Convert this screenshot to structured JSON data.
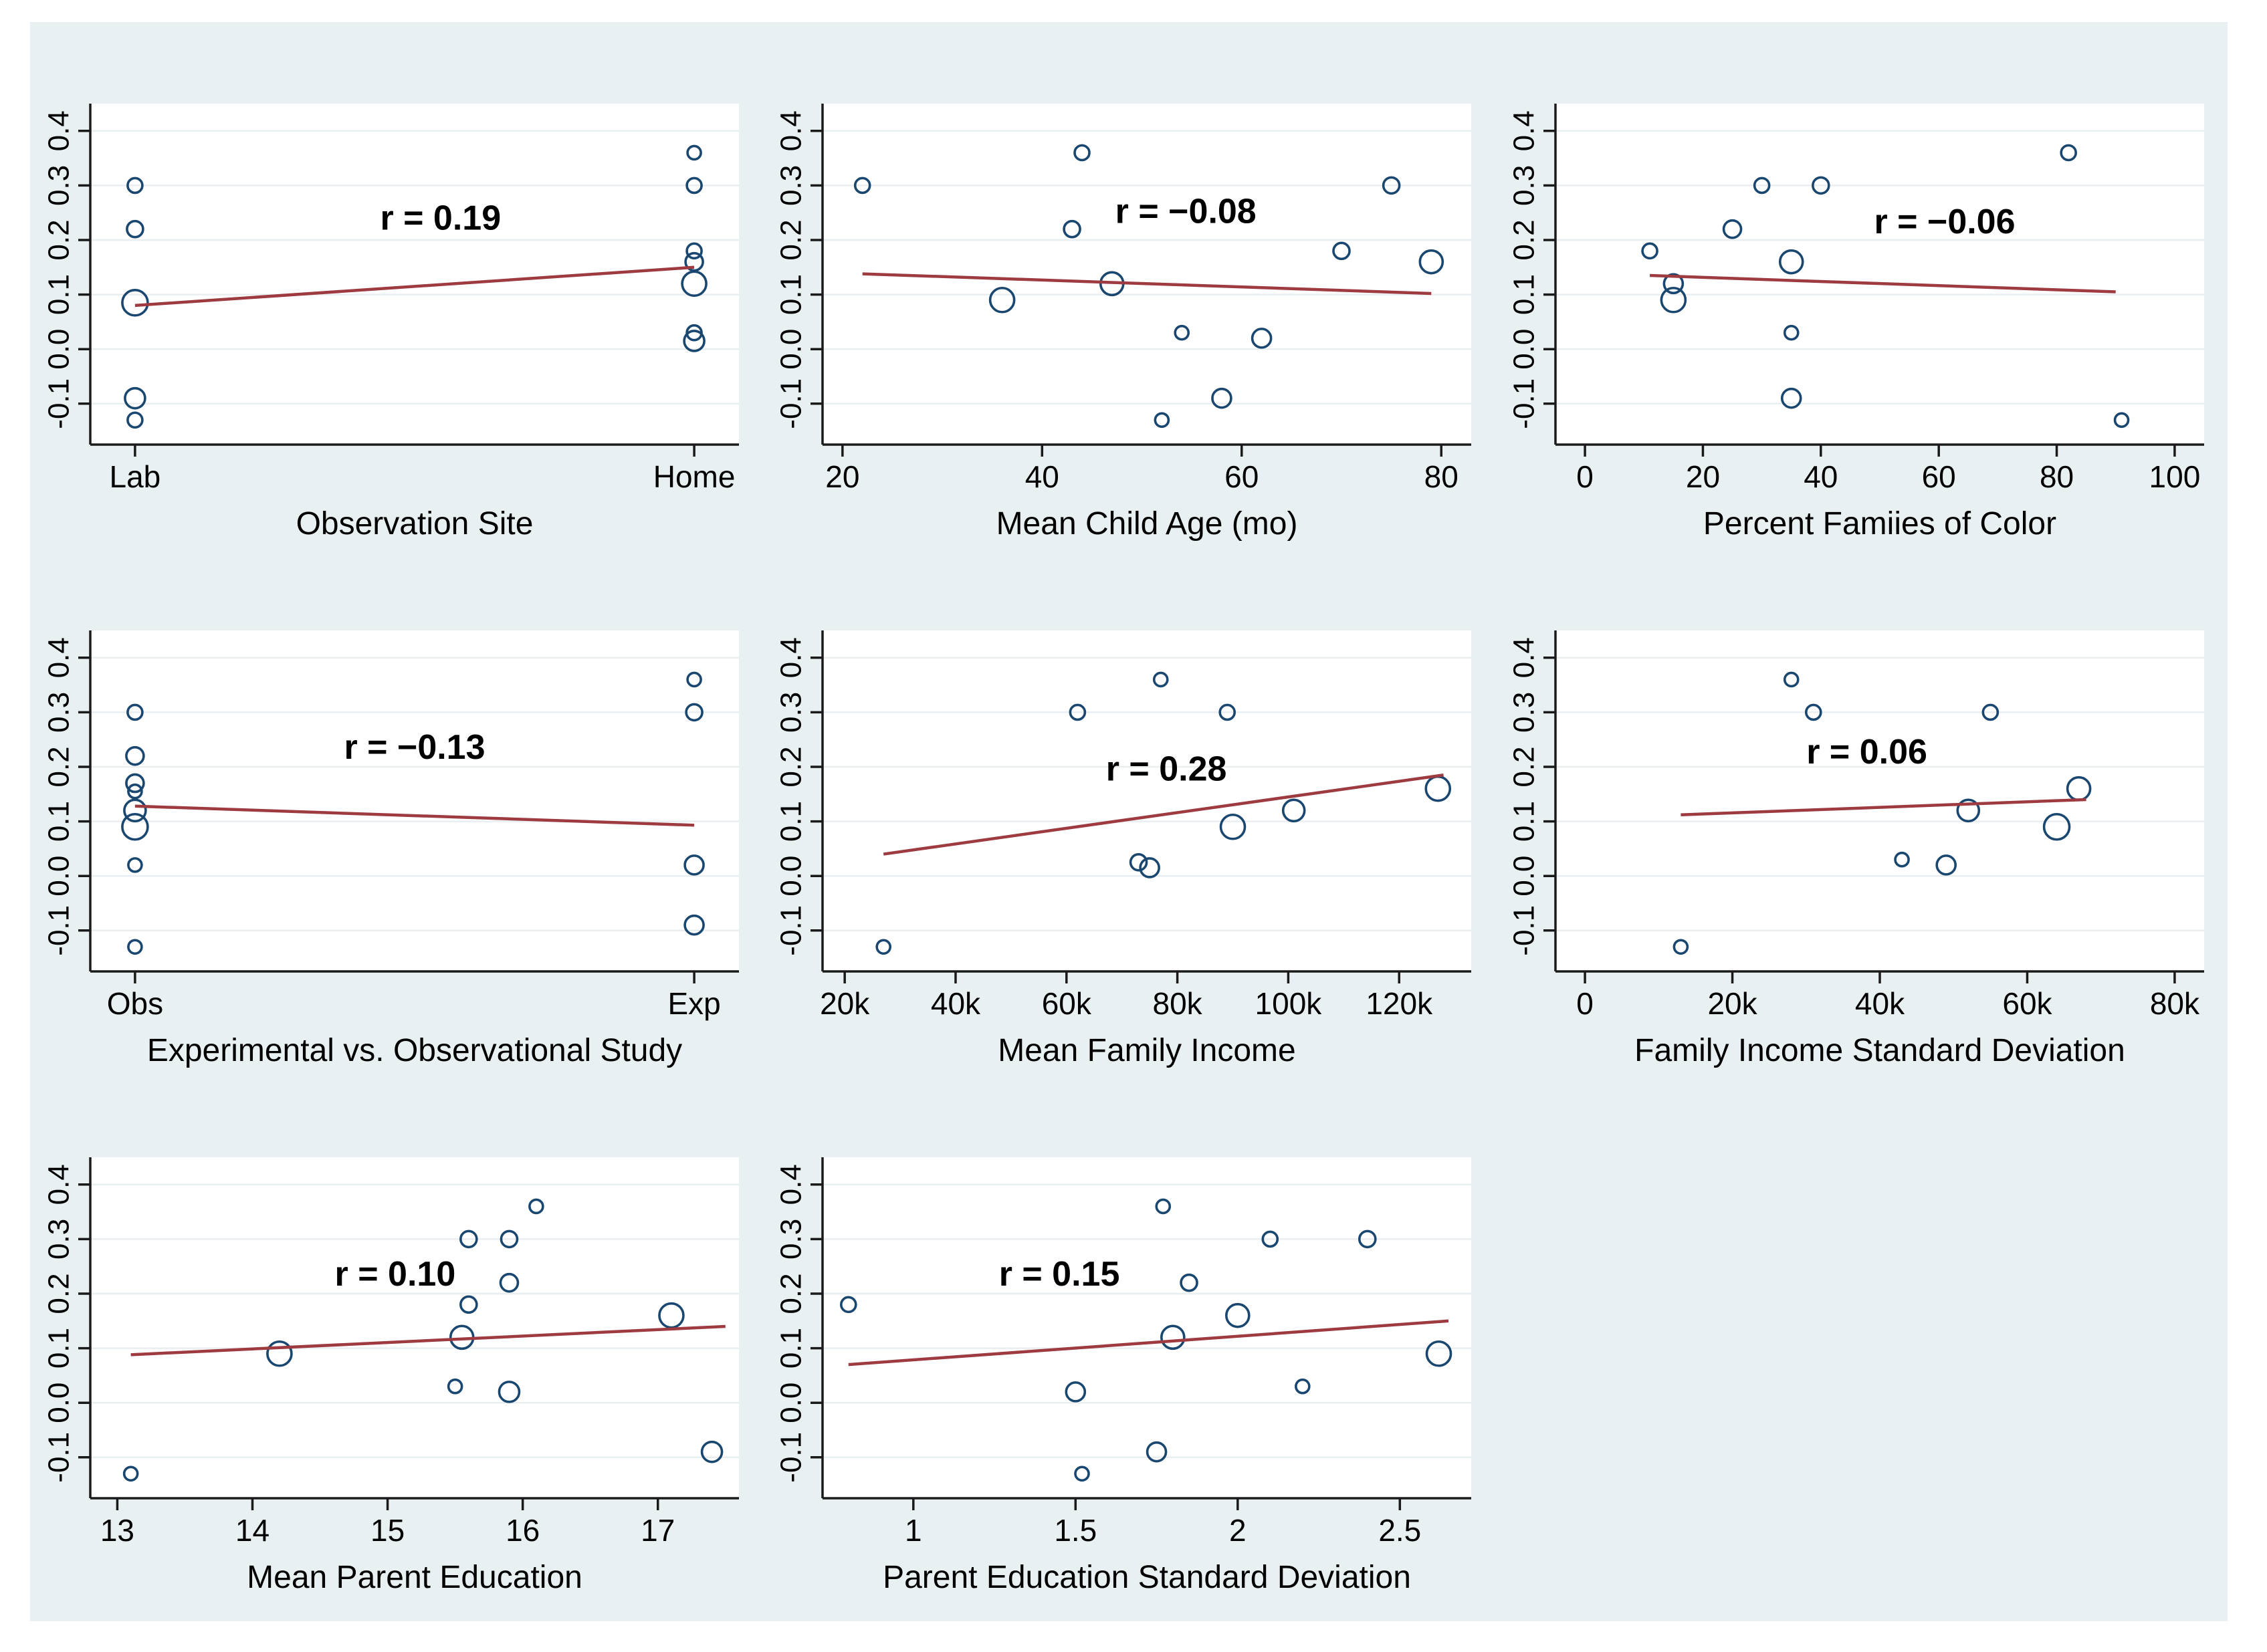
{
  "style": {
    "page_bg": "#ffffff",
    "panel_bg": "#e9f0f2",
    "plot_bg": "#ffffff",
    "grid_color": "#e9eef0",
    "axis_color": "#1a1a1a",
    "marker_color": "#1a476f",
    "fit_line_color": "#9d3b40",
    "text_color": "#000000"
  },
  "y_axis": {
    "lim": [
      -0.175,
      0.45
    ],
    "ticks": [
      {
        "v": -0.1,
        "label": "-0.1"
      },
      {
        "v": 0.0,
        "label": "0.0"
      },
      {
        "v": 0.1,
        "label": "0.1"
      },
      {
        "v": 0.2,
        "label": "0.2"
      },
      {
        "v": 0.3,
        "label": "0.3"
      },
      {
        "v": 0.4,
        "label": "0.4"
      }
    ]
  },
  "chart_data": [
    {
      "type": "scatter",
      "xlabel": "Observation Site",
      "r_label": "r = 0.19",
      "r_pos": {
        "fx": 0.54,
        "fy": 0.37
      },
      "xlim": [
        -0.08,
        1.08
      ],
      "x_ticks": [
        {
          "v": 0,
          "label": "Lab"
        },
        {
          "v": 1,
          "label": "Home"
        }
      ],
      "points": [
        [
          0,
          0.3,
          11
        ],
        [
          0,
          0.22,
          12
        ],
        [
          0,
          0.085,
          19
        ],
        [
          0,
          -0.09,
          15
        ],
        [
          0,
          -0.13,
          11
        ],
        [
          1,
          0.36,
          10
        ],
        [
          1,
          0.3,
          11
        ],
        [
          1,
          0.18,
          11
        ],
        [
          1,
          0.16,
          13
        ],
        [
          1,
          0.12,
          18
        ],
        [
          1,
          0.03,
          11
        ],
        [
          1,
          0.015,
          15
        ]
      ],
      "fit_line": [
        0,
        0.08,
        1,
        0.15
      ]
    },
    {
      "type": "scatter",
      "xlabel": "Mean Child Age (mo)",
      "r_label": "r = −0.08",
      "r_pos": {
        "fx": 0.56,
        "fy": 0.35
      },
      "xlim": [
        18,
        83
      ],
      "x_ticks": [
        {
          "v": 20,
          "label": "20"
        },
        {
          "v": 40,
          "label": "40"
        },
        {
          "v": 60,
          "label": "60"
        },
        {
          "v": 80,
          "label": "80"
        }
      ],
      "points": [
        [
          22,
          0.3,
          11
        ],
        [
          44,
          0.36,
          11
        ],
        [
          43,
          0.22,
          12
        ],
        [
          36,
          0.09,
          18
        ],
        [
          47,
          0.12,
          17
        ],
        [
          54,
          0.03,
          10
        ],
        [
          62,
          0.02,
          14
        ],
        [
          58,
          -0.09,
          14
        ],
        [
          52,
          -0.13,
          10
        ],
        [
          70,
          0.18,
          12
        ],
        [
          75,
          0.3,
          12
        ],
        [
          79,
          0.16,
          17
        ]
      ],
      "fit_line": [
        22,
        0.138,
        79,
        0.102
      ]
    },
    {
      "type": "scatter",
      "xlabel": "Percent Famiies of Color",
      "r_label": "r = −0.06",
      "r_pos": {
        "fx": 0.6,
        "fy": 0.38
      },
      "xlim": [
        -5,
        105
      ],
      "x_ticks": [
        {
          "v": 0,
          "label": "0"
        },
        {
          "v": 20,
          "label": "20"
        },
        {
          "v": 40,
          "label": "40"
        },
        {
          "v": 60,
          "label": "60"
        },
        {
          "v": 80,
          "label": "80"
        },
        {
          "v": 100,
          "label": "100"
        }
      ],
      "points": [
        [
          11,
          0.18,
          11
        ],
        [
          25,
          0.22,
          13
        ],
        [
          30,
          0.3,
          11
        ],
        [
          40,
          0.3,
          12
        ],
        [
          15,
          0.12,
          14
        ],
        [
          15,
          0.09,
          18
        ],
        [
          35,
          0.16,
          17
        ],
        [
          35,
          0.03,
          10
        ],
        [
          35,
          -0.09,
          14
        ],
        [
          82,
          0.36,
          11
        ],
        [
          91,
          -0.13,
          10
        ]
      ],
      "fit_line": [
        11,
        0.135,
        90,
        0.105
      ]
    },
    {
      "type": "scatter",
      "xlabel": "Experimental vs. Observational Study",
      "r_label": "r = −0.13",
      "r_pos": {
        "fx": 0.5,
        "fy": 0.376
      },
      "xlim": [
        -0.08,
        1.08
      ],
      "x_ticks": [
        {
          "v": 0,
          "label": "Obs"
        },
        {
          "v": 1,
          "label": "Exp"
        }
      ],
      "points": [
        [
          0,
          0.3,
          11
        ],
        [
          0,
          0.22,
          13
        ],
        [
          0,
          0.17,
          13
        ],
        [
          0,
          0.155,
          10
        ],
        [
          0,
          0.12,
          16
        ],
        [
          0,
          0.09,
          19
        ],
        [
          0,
          0.02,
          10
        ],
        [
          0,
          -0.13,
          10
        ],
        [
          1,
          0.36,
          10
        ],
        [
          1,
          0.3,
          12
        ],
        [
          1,
          0.02,
          14
        ],
        [
          1,
          -0.09,
          14
        ]
      ],
      "fit_line": [
        0,
        0.128,
        1,
        0.093
      ]
    },
    {
      "type": "scatter",
      "xlabel": "Mean Family Income",
      "r_label": "r = 0.28",
      "r_pos": {
        "fx": 0.53,
        "fy": 0.44
      },
      "xlim": [
        16,
        133
      ],
      "x_ticks": [
        {
          "v": 20,
          "label": "20k"
        },
        {
          "v": 40,
          "label": "40k"
        },
        {
          "v": 60,
          "label": "60k"
        },
        {
          "v": 80,
          "label": "80k"
        },
        {
          "v": 100,
          "label": "100k"
        },
        {
          "v": 120,
          "label": "120k"
        }
      ],
      "points": [
        [
          27,
          -0.13,
          10
        ],
        [
          62,
          0.3,
          11
        ],
        [
          77,
          0.36,
          10
        ],
        [
          89,
          0.3,
          11
        ],
        [
          73,
          0.025,
          12
        ],
        [
          75,
          0.015,
          14
        ],
        [
          90,
          0.09,
          18
        ],
        [
          101,
          0.12,
          16
        ],
        [
          127,
          0.16,
          18
        ]
      ],
      "fit_line": [
        27,
        0.04,
        128,
        0.185
      ]
    },
    {
      "type": "scatter",
      "xlabel": "Family Income Standard Deviation",
      "r_label": "r = 0.06",
      "r_pos": {
        "fx": 0.48,
        "fy": 0.39
      },
      "xlim": [
        -4,
        84
      ],
      "x_ticks": [
        {
          "v": 0,
          "label": "0"
        },
        {
          "v": 20,
          "label": "20k"
        },
        {
          "v": 40,
          "label": "40k"
        },
        {
          "v": 60,
          "label": "60k"
        },
        {
          "v": 80,
          "label": "80k"
        }
      ],
      "points": [
        [
          13,
          -0.13,
          10
        ],
        [
          28,
          0.36,
          10
        ],
        [
          31,
          0.3,
          11
        ],
        [
          55,
          0.3,
          11
        ],
        [
          52,
          0.12,
          16
        ],
        [
          67,
          0.16,
          17
        ],
        [
          64,
          0.09,
          19
        ],
        [
          43,
          0.03,
          10
        ],
        [
          49,
          0.02,
          14
        ]
      ],
      "fit_line": [
        13,
        0.112,
        68,
        0.14
      ]
    },
    {
      "type": "scatter",
      "xlabel": "Mean Parent Education",
      "r_label": "r = 0.10",
      "r_pos": {
        "fx": 0.47,
        "fy": 0.376
      },
      "xlim": [
        12.8,
        17.6
      ],
      "x_ticks": [
        {
          "v": 13,
          "label": "13"
        },
        {
          "v": 14,
          "label": "14"
        },
        {
          "v": 15,
          "label": "15"
        },
        {
          "v": 16,
          "label": "16"
        },
        {
          "v": 17,
          "label": "17"
        }
      ],
      "points": [
        [
          13.1,
          -0.13,
          10
        ],
        [
          14.2,
          0.09,
          18
        ],
        [
          15.6,
          0.3,
          12
        ],
        [
          15.9,
          0.3,
          12
        ],
        [
          16.1,
          0.36,
          10
        ],
        [
          15.9,
          0.22,
          13
        ],
        [
          15.6,
          0.18,
          12
        ],
        [
          15.55,
          0.12,
          17
        ],
        [
          15.5,
          0.03,
          10
        ],
        [
          15.9,
          0.02,
          15
        ],
        [
          17.1,
          0.16,
          18
        ],
        [
          17.4,
          -0.09,
          15
        ]
      ],
      "fit_line": [
        13.1,
        0.088,
        17.5,
        0.14
      ]
    },
    {
      "type": "scatter",
      "xlabel": "Parent Education Standard Deviation",
      "r_label": "r = 0.15",
      "r_pos": {
        "fx": 0.365,
        "fy": 0.376
      },
      "xlim": [
        0.72,
        2.72
      ],
      "x_ticks": [
        {
          "v": 1,
          "label": "1"
        },
        {
          "v": 1.5,
          "label": "1.5"
        },
        {
          "v": 2,
          "label": "2"
        },
        {
          "v": 2.5,
          "label": "2.5"
        }
      ],
      "points": [
        [
          0.8,
          0.18,
          11
        ],
        [
          1.77,
          0.36,
          10
        ],
        [
          2.1,
          0.3,
          11
        ],
        [
          2.4,
          0.3,
          12
        ],
        [
          1.85,
          0.22,
          12
        ],
        [
          1.8,
          0.12,
          17
        ],
        [
          2.0,
          0.16,
          17
        ],
        [
          1.5,
          0.02,
          14
        ],
        [
          2.2,
          0.03,
          10
        ],
        [
          1.75,
          -0.09,
          14
        ],
        [
          1.52,
          -0.13,
          10
        ],
        [
          2.62,
          0.09,
          18
        ]
      ],
      "fit_line": [
        0.8,
        0.07,
        2.65,
        0.15
      ]
    }
  ]
}
